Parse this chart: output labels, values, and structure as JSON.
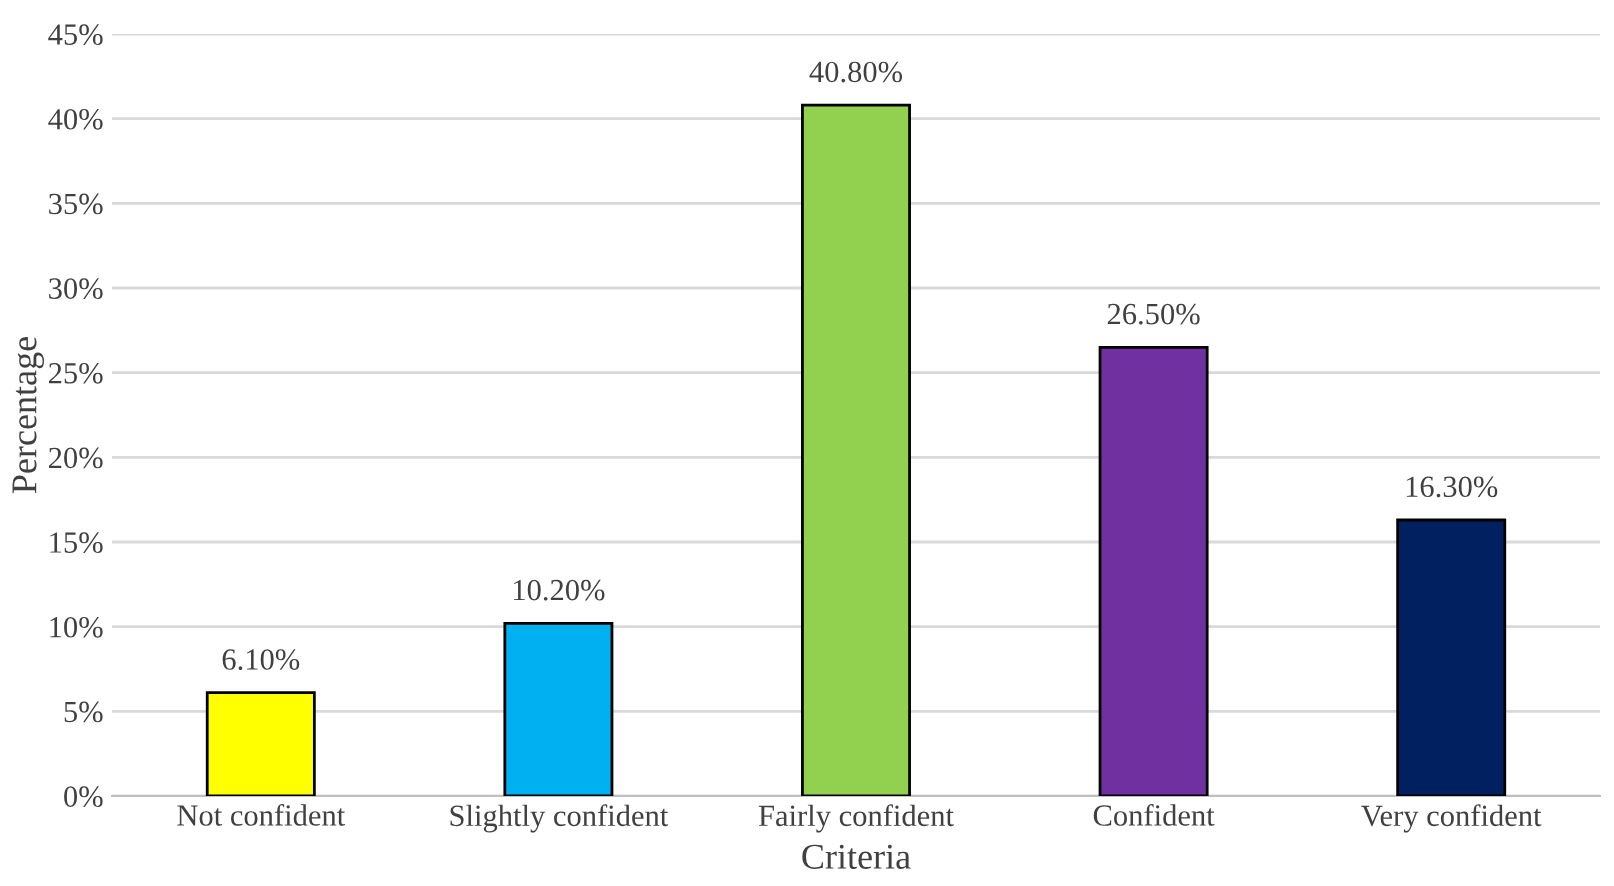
{
  "chart_data": {
    "type": "bar",
    "xlabel": "Criteria",
    "ylabel": "Percentage",
    "categories": [
      "Not confident",
      "Slightly confident",
      "Fairly confident",
      "Confident",
      "Very confident"
    ],
    "values": [
      6.1,
      10.2,
      40.8,
      26.5,
      16.3
    ],
    "colors": [
      "#ffff00",
      "#00b0f0",
      "#92d050",
      "#7030a0",
      "#002060"
    ],
    "value_labels": [
      "6.10%",
      "10.20%",
      "40.80%",
      "26.50%",
      "16.30%"
    ],
    "ylim": [
      0,
      45
    ],
    "yticks": [
      {
        "value": 0,
        "label": "0%"
      },
      {
        "value": 5,
        "label": "5%"
      },
      {
        "value": 10,
        "label": "10%"
      },
      {
        "value": 15,
        "label": "15%"
      },
      {
        "value": 20,
        "label": "20%"
      },
      {
        "value": 25,
        "label": "25%"
      },
      {
        "value": 30,
        "label": "30%"
      },
      {
        "value": 35,
        "label": "35%"
      },
      {
        "value": 40,
        "label": "40%"
      },
      {
        "value": 45,
        "label": "45%"
      }
    ],
    "grid": "y"
  }
}
